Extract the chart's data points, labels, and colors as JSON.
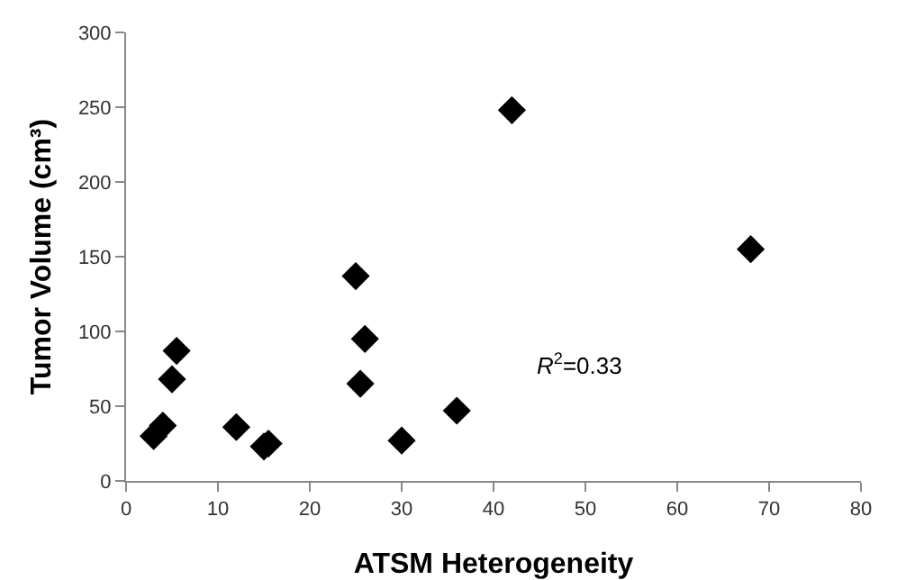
{
  "chart_data": {
    "type": "scatter",
    "xlabel": "ATSM Heterogeneity",
    "ylabel": "Tumor Volume (cm³)",
    "x": [
      3,
      4,
      5,
      5.5,
      12,
      15,
      15.5,
      25,
      25.5,
      26,
      30,
      36,
      42,
      68
    ],
    "values": [
      30,
      37,
      68,
      87,
      36,
      23,
      25,
      137,
      65,
      95,
      27,
      47,
      248,
      155
    ],
    "color": "#000000",
    "marker": "diamond",
    "xlim": [
      0,
      80
    ],
    "xticks": [
      0,
      10,
      20,
      30,
      40,
      50,
      60,
      70,
      80
    ],
    "ylim": [
      0,
      300
    ],
    "yticks": [
      0,
      50,
      100,
      150,
      200,
      250,
      300
    ],
    "grid": false,
    "annotations": [
      "R$^{2}$=0.33"
    ]
  }
}
